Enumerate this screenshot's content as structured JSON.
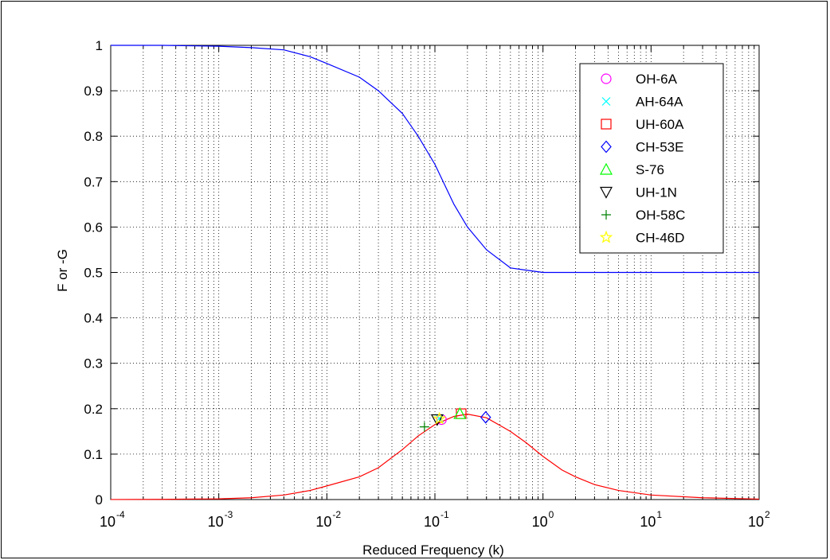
{
  "chart_data": {
    "type": "line",
    "xlabel": "Reduced Frequency (k)",
    "ylabel": "F or -G",
    "xscale": "log",
    "xlim": [
      0.0001,
      100
    ],
    "ylim": [
      0,
      1
    ],
    "grid": true,
    "legend_position": "top-right",
    "x_ticks": [
      {
        "value": 0.0001,
        "base": "10",
        "exp": "-4"
      },
      {
        "value": 0.001,
        "base": "10",
        "exp": "-3"
      },
      {
        "value": 0.01,
        "base": "10",
        "exp": "-2"
      },
      {
        "value": 0.1,
        "base": "10",
        "exp": "-1"
      },
      {
        "value": 1,
        "base": "10",
        "exp": "0"
      },
      {
        "value": 10,
        "base": "10",
        "exp": "1"
      },
      {
        "value": 100,
        "base": "10",
        "exp": "2"
      }
    ],
    "y_ticks": [
      {
        "value": 0,
        "label": "0"
      },
      {
        "value": 0.1,
        "label": "0.1"
      },
      {
        "value": 0.2,
        "label": "0.2"
      },
      {
        "value": 0.3,
        "label": "0.3"
      },
      {
        "value": 0.4,
        "label": "0.4"
      },
      {
        "value": 0.5,
        "label": "0.5"
      },
      {
        "value": 0.6,
        "label": "0.6"
      },
      {
        "value": 0.7,
        "label": "0.7"
      },
      {
        "value": 0.8,
        "label": "0.8"
      },
      {
        "value": 0.9,
        "label": "0.9"
      },
      {
        "value": 1,
        "label": "1"
      }
    ],
    "curves": [
      {
        "id": "F",
        "color": "#0000ff",
        "x": [
          0.0001,
          0.0003,
          0.001,
          0.002,
          0.004,
          0.007,
          0.01,
          0.02,
          0.03,
          0.05,
          0.07,
          0.1,
          0.15,
          0.2,
          0.3,
          0.5,
          0.7,
          1,
          1.5,
          2,
          3,
          5,
          10,
          30,
          100
        ],
        "y": [
          1.0,
          1.0,
          0.998,
          0.995,
          0.99,
          0.975,
          0.96,
          0.93,
          0.9,
          0.85,
          0.8,
          0.738,
          0.65,
          0.6,
          0.55,
          0.51,
          0.505,
          0.5,
          0.5,
          0.5,
          0.5,
          0.5,
          0.5,
          0.5,
          0.5
        ]
      },
      {
        "id": "G",
        "color": "#ff0000",
        "x": [
          0.0001,
          0.0003,
          0.001,
          0.002,
          0.004,
          0.007,
          0.01,
          0.02,
          0.03,
          0.05,
          0.07,
          0.1,
          0.15,
          0.2,
          0.3,
          0.5,
          0.7,
          1,
          1.5,
          2,
          3,
          5,
          10,
          30,
          100
        ],
        "y": [
          0.0001,
          0.0004,
          0.0016,
          0.004,
          0.01,
          0.02,
          0.03,
          0.05,
          0.07,
          0.11,
          0.14,
          0.165,
          0.183,
          0.188,
          0.18,
          0.15,
          0.125,
          0.095,
          0.065,
          0.05,
          0.033,
          0.02,
          0.01,
          0.004,
          0.001
        ]
      }
    ],
    "series": [
      {
        "name": "OH-6A",
        "color": "#ff00ff",
        "marker": "circle",
        "x": 0.115,
        "y": 0.176
      },
      {
        "name": "AH-64A",
        "color": "#00ffff",
        "marker": "x",
        "x": 0.11,
        "y": 0.179
      },
      {
        "name": "UH-60A",
        "color": "#ff0000",
        "marker": "square",
        "x": 0.175,
        "y": 0.189
      },
      {
        "name": "CH-53E",
        "color": "#0000ff",
        "marker": "diamond",
        "x": 0.295,
        "y": 0.181
      },
      {
        "name": "S-76",
        "color": "#00ff00",
        "marker": "triangle-up",
        "x": 0.17,
        "y": 0.189
      },
      {
        "name": "UH-1N",
        "color": "#000000",
        "marker": "triangle-down",
        "x": 0.105,
        "y": 0.176
      },
      {
        "name": "OH-58C",
        "color": "#008000",
        "marker": "plus",
        "x": 0.08,
        "y": 0.16
      },
      {
        "name": "CH-46D",
        "color": "#ffff00",
        "marker": "star",
        "x": 0.11,
        "y": 0.178
      }
    ]
  }
}
